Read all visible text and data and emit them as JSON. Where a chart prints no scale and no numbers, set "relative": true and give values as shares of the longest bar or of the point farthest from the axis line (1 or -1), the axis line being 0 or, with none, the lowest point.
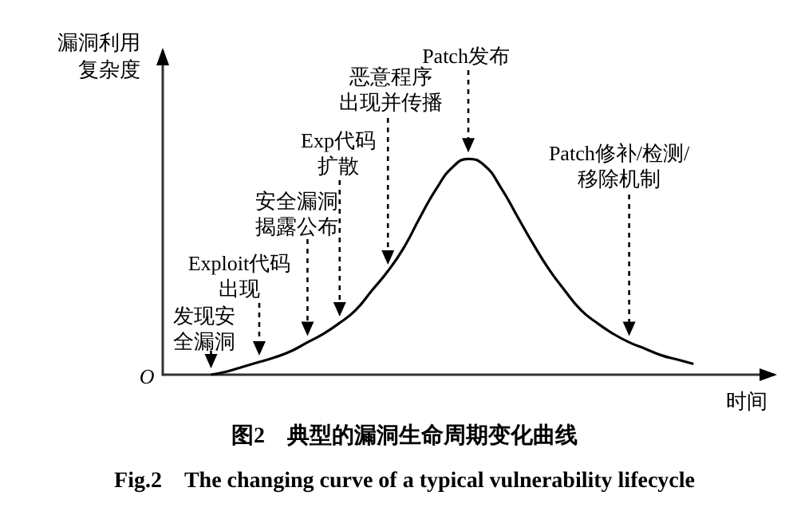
{
  "chart_data": {
    "type": "line",
    "title": "图2　典型的漏洞生命周期变化曲线",
    "subtitle": "Fig.2　The changing curve of a typical vulnerability lifecycle",
    "xlabel": "时间",
    "ylabel": "漏洞利用复杂度",
    "relative": true,
    "color": "#000000",
    "categories": [
      null,
      null,
      null,
      null,
      null,
      null,
      null,
      null,
      null,
      null,
      null,
      null,
      null,
      null,
      null,
      null,
      null,
      null,
      null,
      null,
      null,
      null,
      null,
      null,
      null,
      null,
      null,
      null,
      null,
      null,
      null,
      null,
      null,
      null,
      null,
      null,
      null,
      null,
      null
    ],
    "values": [
      null,
      null,
      null,
      0,
      0.015,
      0.037,
      0.059,
      0.081,
      0.11,
      0.15,
      0.19,
      0.24,
      0.3,
      0.39,
      0.48,
      0.59,
      0.73,
      0.86,
      0.96,
      1,
      0.97,
      0.87,
      0.74,
      0.61,
      0.49,
      0.39,
      0.3,
      0.24,
      0.19,
      0.15,
      0.12,
      0.09,
      0.07,
      0.05,
      null,
      null,
      null,
      null,
      null
    ],
    "annotations": [
      "发现安全漏洞",
      "Exploit代码出现",
      "安全漏洞揭露公布",
      "Exp代码扩散",
      "恶意程序出现并传播",
      "Patch发布",
      "Patch修补/检测/移除机制",
      "O"
    ]
  }
}
